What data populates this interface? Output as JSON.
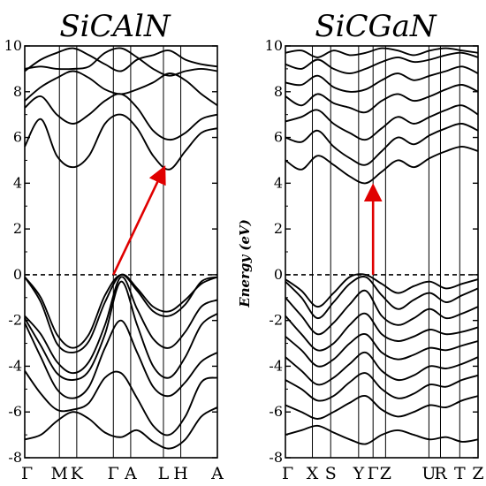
{
  "colors": {
    "bands": "#000000",
    "gap_arrow": "#e00000",
    "fermi_line": "#000000"
  },
  "chart_data": [
    {
      "type": "line",
      "title": "SiCAlN",
      "ylabel": "",
      "ylim": [
        -8,
        10
      ],
      "yticks": [
        -8,
        -6,
        -4,
        -2,
        0,
        2,
        4,
        6,
        8,
        10
      ],
      "ytick_labels": [
        "-8",
        "-6",
        "-4",
        "-2",
        "0",
        "2",
        "4",
        "6",
        "8",
        "10"
      ],
      "kpath": {
        "labels": [
          "Γ",
          "M",
          "K",
          "Γ",
          "A",
          "L",
          "H",
          "A"
        ],
        "positions": [
          0,
          0.18,
          0.27,
          0.46,
          0.55,
          0.72,
          0.81,
          1.0
        ]
      },
      "fermi_level": 0,
      "gap_arrow": {
        "from": [
          0.46,
          0
        ],
        "to": [
          0.72,
          4.6
        ]
      },
      "bands": [
        [
          -0.1,
          -1.0,
          -2.6,
          -3.2,
          -2.6,
          -0.9,
          0,
          -0.7,
          -1.6,
          -1.8,
          -1.3,
          -0.3,
          -0.1
        ],
        [
          -0.1,
          -1.2,
          -3.0,
          -3.4,
          -2.9,
          -1.2,
          0,
          -0.6,
          -1.4,
          -1.6,
          -1.1,
          -0.4,
          -0.1
        ],
        [
          -1.8,
          -2.6,
          -3.8,
          -4.3,
          -3.8,
          -2.2,
          -0.1,
          -1.5,
          -2.8,
          -3.2,
          -2.5,
          -1.4,
          -1.1
        ],
        [
          -1.9,
          -3.1,
          -4.3,
          -4.6,
          -4.2,
          -2.6,
          -0.3,
          -2.2,
          -4.0,
          -4.5,
          -3.6,
          -2.2,
          -1.7
        ],
        [
          -2.1,
          -3.6,
          -5.0,
          -5.4,
          -4.9,
          -3.2,
          -2.0,
          -3.4,
          -4.9,
          -5.3,
          -4.7,
          -3.8,
          -3.4
        ],
        [
          -4.2,
          -5.2,
          -5.9,
          -5.9,
          -5.6,
          -4.5,
          -4.3,
          -5.4,
          -6.6,
          -7.0,
          -6.2,
          -4.7,
          -4.5
        ],
        [
          -7.2,
          -7.0,
          -6.4,
          -6.0,
          -6.3,
          -6.9,
          -7.1,
          -6.8,
          -7.3,
          -7.6,
          -7.2,
          -6.2,
          -5.8
        ],
        [
          5.6,
          6.8,
          5.2,
          4.7,
          5.2,
          6.6,
          7.0,
          6.4,
          5.2,
          4.6,
          5.4,
          6.2,
          6.4
        ],
        [
          7.3,
          7.8,
          7.0,
          6.6,
          7.0,
          7.6,
          7.9,
          7.3,
          6.3,
          5.9,
          6.2,
          6.8,
          7.0
        ],
        [
          7.6,
          8.2,
          8.6,
          8.9,
          8.6,
          8.1,
          7.9,
          8.1,
          8.4,
          8.8,
          8.5,
          7.9,
          7.4
        ],
        [
          8.9,
          9.4,
          9.7,
          9.9,
          9.6,
          9.2,
          8.9,
          9.4,
          9.6,
          9.8,
          9.4,
          9.2,
          9.1
        ],
        [
          9.0,
          9.1,
          9.0,
          9.0,
          9.1,
          9.7,
          9.9,
          9.5,
          9.0,
          8.7,
          8.9,
          9.0,
          8.9
        ]
      ]
    },
    {
      "type": "line",
      "title": "SiCGaN",
      "ylabel": "Energy (eV)",
      "ylim": [
        -8,
        10
      ],
      "yticks": [
        -8,
        -6,
        -4,
        -2,
        0,
        2,
        4,
        6,
        8,
        10
      ],
      "ytick_labels": [
        "-8",
        "-6",
        "-4",
        "-2",
        "0",
        "2",
        "4",
        "6",
        "8",
        "10"
      ],
      "kpath": {
        "labels": [
          "Γ",
          "X",
          "S",
          "Y",
          "Γ",
          "Z",
          "U",
          "R",
          "T",
          "Z"
        ],
        "positions": [
          0,
          0.14,
          0.235,
          0.38,
          0.455,
          0.52,
          0.745,
          0.805,
          0.905,
          1.0
        ]
      },
      "fermi_level": 0,
      "gap_arrow": {
        "from": [
          0.455,
          0
        ],
        "to": [
          0.455,
          3.8
        ]
      },
      "bands": [
        [
          -0.2,
          -0.7,
          -1.4,
          -0.8,
          -0.1,
          0,
          -0.4,
          -0.8,
          -0.5,
          -0.3,
          -0.6,
          -0.4,
          -0.2
        ],
        [
          -0.3,
          -1.0,
          -1.9,
          -1.2,
          -0.4,
          -0.1,
          -0.9,
          -1.5,
          -1.1,
          -0.8,
          -1.2,
          -0.9,
          -0.6
        ],
        [
          -1.0,
          -1.8,
          -2.6,
          -2.1,
          -1.3,
          -0.7,
          -1.8,
          -2.2,
          -1.9,
          -1.5,
          -1.9,
          -1.7,
          -1.4
        ],
        [
          -1.8,
          -2.6,
          -3.3,
          -3.0,
          -2.2,
          -1.7,
          -2.6,
          -2.9,
          -2.7,
          -2.4,
          -2.6,
          -2.5,
          -2.3
        ],
        [
          -2.7,
          -3.3,
          -4.0,
          -3.7,
          -3.0,
          -2.6,
          -3.4,
          -3.7,
          -3.5,
          -3.2,
          -3.3,
          -3.1,
          -2.9
        ],
        [
          -3.6,
          -4.2,
          -4.8,
          -4.5,
          -3.9,
          -3.4,
          -4.2,
          -4.6,
          -4.4,
          -4.0,
          -4.1,
          -3.9,
          -3.6
        ],
        [
          -4.6,
          -5.0,
          -5.5,
          -5.3,
          -4.7,
          -4.3,
          -5.0,
          -5.4,
          -5.2,
          -4.8,
          -4.9,
          -4.6,
          -4.4
        ],
        [
          -5.7,
          -6.0,
          -6.3,
          -6.0,
          -5.6,
          -5.3,
          -5.9,
          -6.2,
          -6.0,
          -5.7,
          -5.8,
          -5.5,
          -5.3
        ],
        [
          -7.0,
          -6.8,
          -6.6,
          -6.9,
          -7.2,
          -7.4,
          -7.0,
          -6.8,
          -7.0,
          -7.2,
          -7.1,
          -7.3,
          -7.2
        ],
        [
          5.0,
          4.6,
          5.2,
          4.8,
          4.3,
          4.0,
          4.5,
          5.0,
          4.7,
          5.1,
          5.4,
          5.6,
          5.4
        ],
        [
          6.0,
          5.8,
          6.3,
          5.6,
          5.1,
          4.8,
          5.4,
          6.0,
          5.7,
          6.1,
          6.4,
          6.6,
          6.3
        ],
        [
          6.7,
          6.9,
          7.2,
          6.6,
          6.2,
          5.9,
          6.4,
          6.9,
          6.6,
          6.9,
          7.2,
          7.4,
          7.0
        ],
        [
          7.8,
          7.4,
          7.9,
          7.5,
          7.3,
          7.1,
          7.6,
          7.9,
          7.6,
          7.8,
          8.1,
          8.3,
          8.0
        ],
        [
          8.4,
          8.3,
          8.7,
          8.2,
          8.0,
          8.1,
          8.5,
          8.8,
          8.5,
          8.7,
          8.9,
          9.1,
          8.8
        ],
        [
          9.2,
          9.0,
          9.4,
          9.0,
          8.8,
          9.0,
          9.3,
          9.5,
          9.3,
          9.4,
          9.6,
          9.7,
          9.5
        ],
        [
          9.7,
          9.8,
          9.5,
          9.8,
          9.6,
          9.7,
          9.9,
          9.8,
          9.6,
          9.8,
          9.9,
          9.8,
          9.7
        ]
      ]
    }
  ]
}
